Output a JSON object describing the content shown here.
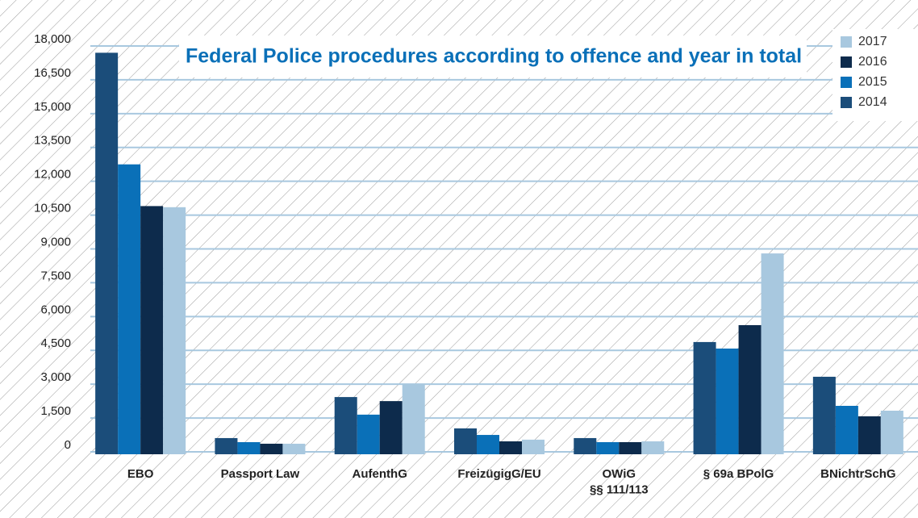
{
  "chart_data": {
    "type": "bar",
    "title": "Federal Police procedures according to offence and year in total",
    "categories": [
      "EBO",
      "Passport Law",
      "AufenthG",
      "FreizügigG/EU",
      "OWiG\n§§ 111/113",
      "§ 69a BPolG",
      "BNichtrSchG"
    ],
    "series": [
      {
        "name": "2014",
        "color": "#1b4d7a",
        "values": [
          17700,
          610,
          2430,
          1040,
          610,
          4870,
          3330
        ]
      },
      {
        "name": "2015",
        "color": "#0a70b8",
        "values": [
          12750,
          430,
          1650,
          750,
          430,
          4580,
          2040
        ]
      },
      {
        "name": "2016",
        "color": "#0d2b4c",
        "values": [
          10900,
          360,
          2250,
          465,
          430,
          5620,
          1575
        ]
      },
      {
        "name": "2017",
        "color": "#a8c8df",
        "values": [
          10850,
          360,
          3000,
          540,
          465,
          8800,
          1825
        ]
      }
    ],
    "ylim": [
      0,
      18000
    ],
    "yticks": [
      0,
      {
        "value": 1500,
        "label": "1,500"
      },
      {
        "value": 3000,
        "label": "3,000"
      },
      {
        "value": 4500,
        "label": "4,500"
      },
      {
        "value": 6000,
        "label": "6,000"
      },
      {
        "value": 7500,
        "label": "7,500"
      },
      {
        "value": 9000,
        "label": "9,000"
      },
      {
        "value": 10500,
        "label": "10,500"
      },
      {
        "value": 12000,
        "label": "12,000"
      },
      {
        "value": 13500,
        "label": "13,500"
      },
      {
        "value": 15000,
        "label": "15,000"
      },
      {
        "value": 16500,
        "label": "16,500"
      },
      {
        "value": 18000,
        "label": "18,000"
      }
    ],
    "grid": true,
    "legend": "top-right"
  }
}
